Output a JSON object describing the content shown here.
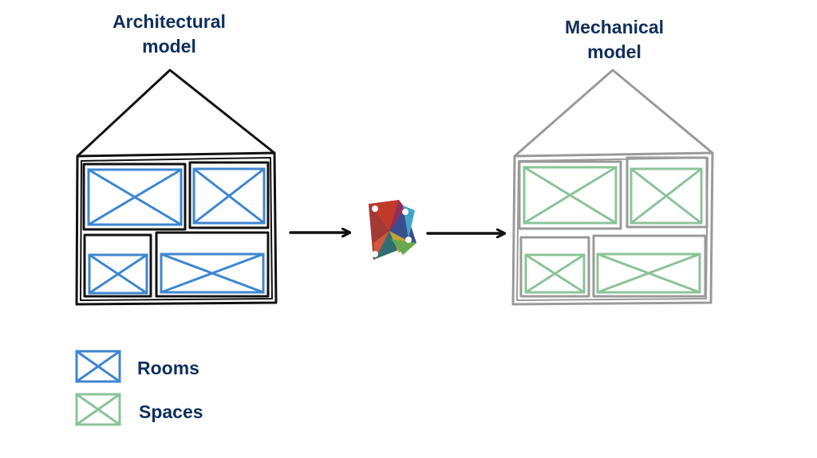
{
  "titles": {
    "architectural_line1": "Architectural",
    "architectural_line2": "model",
    "mechanical_line1": "Mechanical",
    "mechanical_line2": "model"
  },
  "legend": {
    "rooms_label": "Rooms",
    "spaces_label": "Spaces"
  },
  "colors": {
    "architectural_outline": "#111111",
    "mechanical_outline": "#9a9a9a",
    "room": "#3f86d0",
    "space": "#8cc39a",
    "title_text": "#0f2f5c"
  },
  "icons": {
    "center": "dynamo-logo-icon",
    "arrows": "arrow-right-icon"
  }
}
